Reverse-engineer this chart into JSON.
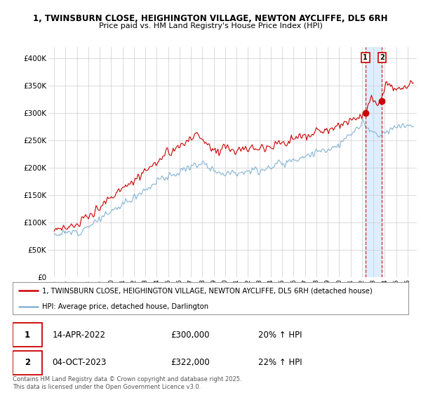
{
  "title1": "1, TWINSBURN CLOSE, HEIGHINGTON VILLAGE, NEWTON AYCLIFFE, DL5 6RH",
  "title2": "Price paid vs. HM Land Registry's House Price Index (HPI)",
  "legend_line1": "1, TWINSBURN CLOSE, HEIGHINGTON VILLAGE, NEWTON AYCLIFFE, DL5 6RH (detached house)",
  "legend_line2": "HPI: Average price, detached house, Darlington",
  "ylim": [
    0,
    420000
  ],
  "yticks": [
    0,
    50000,
    100000,
    150000,
    200000,
    250000,
    300000,
    350000,
    400000
  ],
  "ytick_labels": [
    "£0",
    "£50K",
    "£100K",
    "£150K",
    "£200K",
    "£250K",
    "£300K",
    "£350K",
    "£400K"
  ],
  "red_color": "#cc0000",
  "blue_color": "#85b4d4",
  "highlight_color": "#ddeeff",
  "annotation1": {
    "label": "1",
    "date": "14-APR-2022",
    "price": "£300,000",
    "hpi": "20% ↑ HPI",
    "t": 2022.29
  },
  "annotation2": {
    "label": "2",
    "date": "04-OCT-2023",
    "price": "£322,000",
    "hpi": "22% ↑ HPI",
    "t": 2023.75
  },
  "footer": "Contains HM Land Registry data © Crown copyright and database right 2025.\nThis data is licensed under the Open Government Licence v3.0.",
  "background_color": "#ffffff",
  "grid_color": "#cccccc",
  "xmin": 1994.5,
  "xmax": 2026.8,
  "x_ticks_start": 1995,
  "x_ticks_end": 2026,
  "noise_seed": 12
}
